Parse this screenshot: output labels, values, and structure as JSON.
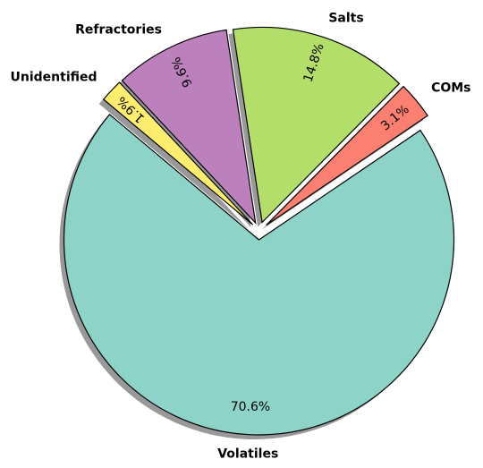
{
  "chart_data": {
    "type": "pie",
    "categories": [
      "Volatiles",
      "COMs",
      "Salts",
      "Refractories",
      "Unidentified"
    ],
    "values": [
      70.6,
      3.1,
      14.8,
      9.6,
      1.9
    ],
    "value_labels": [
      "70.6%",
      "3.1%",
      "14.8%",
      "9.6%",
      "1.9%"
    ],
    "colors": [
      "#8dd3c7",
      "#fb8072",
      "#b3de69",
      "#bc80bd",
      "#ffed6f"
    ],
    "startangle": 140,
    "shadow": true
  }
}
